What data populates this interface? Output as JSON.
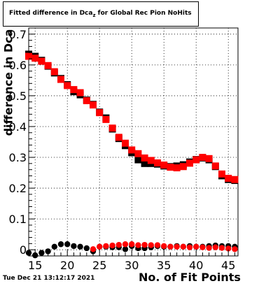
{
  "title": {
    "prefix": "Fitted difference in Dca",
    "subscript": "z",
    "suffix": " for Global Rec Pion NoHits"
  },
  "timestamp": "Tue Dec 21 13:12:17 2021",
  "chart_data": {
    "type": "scatter",
    "title": "Fitted difference in Dcaz for Global Rec Pion NoHits",
    "xlabel": "No. of Fit Points",
    "ylabel": "difference in Dca",
    "xlim": [
      14,
      46.5
    ],
    "ylim": [
      -0.02,
      0.72
    ],
    "grid": true,
    "x_ticks": [
      15,
      20,
      25,
      30,
      35,
      40,
      45
    ],
    "y_ticks": [
      0,
      0.1,
      0.2,
      0.3,
      0.4,
      0.5,
      0.6,
      0.7
    ],
    "x": [
      14,
      15,
      16,
      17,
      18,
      19,
      20,
      21,
      22,
      23,
      24,
      25,
      26,
      27,
      28,
      29,
      30,
      31,
      32,
      33,
      34,
      35,
      36,
      37,
      38,
      39,
      40,
      41,
      42,
      43,
      44,
      45,
      46
    ],
    "series": [
      {
        "color": "#000000",
        "marker": "square",
        "values": [
          0.635,
          0.628,
          0.615,
          0.596,
          0.574,
          0.556,
          0.536,
          0.513,
          0.503,
          0.486,
          0.472,
          0.447,
          0.428,
          0.392,
          0.361,
          0.338,
          0.315,
          0.292,
          0.28,
          0.28,
          0.278,
          0.272,
          0.27,
          0.272,
          0.276,
          0.285,
          0.293,
          0.298,
          0.292,
          0.27,
          0.24,
          0.228,
          0.225
        ]
      },
      {
        "color": "#ff0000",
        "marker": "square",
        "values": [
          0.628,
          0.622,
          0.612,
          0.598,
          0.578,
          0.553,
          0.533,
          0.52,
          0.51,
          0.484,
          0.47,
          0.445,
          0.423,
          0.395,
          0.365,
          0.346,
          0.324,
          0.312,
          0.298,
          0.29,
          0.282,
          0.275,
          0.268,
          0.266,
          0.27,
          0.281,
          0.292,
          0.3,
          0.296,
          0.272,
          0.246,
          0.232,
          0.228
        ]
      },
      {
        "color": "#000000",
        "marker": "circle",
        "values": [
          -0.01,
          -0.018,
          -0.01,
          -0.005,
          0.01,
          0.018,
          0.018,
          0.012,
          0.01,
          0.005,
          -0.005,
          0.01,
          0.01,
          0.008,
          0.008,
          0.002,
          0.012,
          0.005,
          0.005,
          0.008,
          0.012,
          0.01,
          0.01,
          0.012,
          0.01,
          0.012,
          0.01,
          0.01,
          0.012,
          0.014,
          0.012,
          0.012,
          0.01
        ]
      },
      {
        "color": "#ff0000",
        "marker": "circle",
        "values": [
          null,
          null,
          null,
          null,
          null,
          null,
          null,
          null,
          null,
          null,
          0.002,
          0.01,
          0.012,
          0.014,
          0.016,
          0.018,
          0.018,
          0.015,
          0.016,
          0.015,
          0.015,
          0.012,
          0.01,
          0.01,
          0.01,
          0.008,
          0.01,
          0.008,
          0.006,
          0.008,
          0.006,
          0.004,
          0.002
        ]
      }
    ]
  }
}
